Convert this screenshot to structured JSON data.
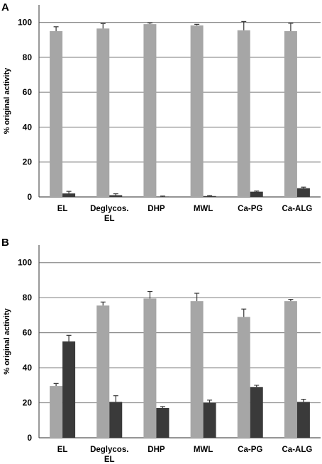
{
  "colors": {
    "series_light": "#a6a6a6",
    "series_dark": "#3a3a3a",
    "grid": "#8c8c8c",
    "axis": "#555555",
    "error_bar": "#333333"
  },
  "chart_data": [
    {
      "panel": "A",
      "type": "bar",
      "categories": [
        [
          "EL"
        ],
        [
          "Deglycos.",
          "EL"
        ],
        [
          "DHP"
        ],
        [
          "MWL"
        ],
        [
          "Ca-PG"
        ],
        [
          "Ca-ALG"
        ]
      ],
      "series": [
        {
          "color": "#a6a6a6",
          "values": [
            95,
            96.5,
            99,
            98.3,
            95.5,
            95
          ],
          "errors": [
            2.5,
            2.8,
            0.7,
            0.6,
            5,
            4.5
          ]
        },
        {
          "color": "#3a3a3a",
          "values": [
            2,
            1,
            0.2,
            0.5,
            3,
            5
          ],
          "errors": [
            1.2,
            0.8,
            0.3,
            0.3,
            0.4,
            0.6
          ]
        }
      ],
      "ylabel": "% original activity",
      "yticks": [
        0,
        20,
        40,
        60,
        80,
        100
      ],
      "ylim": [
        0,
        110
      ],
      "grid": true
    },
    {
      "panel": "B",
      "type": "bar",
      "categories": [
        [
          "EL"
        ],
        [
          "Deglycos.",
          "EL"
        ],
        [
          "DHP"
        ],
        [
          "MWL"
        ],
        [
          "Ca-PG"
        ],
        [
          "Ca-ALG"
        ]
      ],
      "series": [
        {
          "color": "#a6a6a6",
          "values": [
            29.5,
            75.5,
            79.5,
            78,
            69,
            78
          ],
          "errors": [
            1.5,
            2,
            4,
            4.5,
            4.5,
            1
          ]
        },
        {
          "color": "#3a3a3a",
          "values": [
            55,
            20.5,
            17,
            20,
            29,
            20.5
          ],
          "errors": [
            3.5,
            3.5,
            0.8,
            1.5,
            1,
            1.5
          ]
        }
      ],
      "ylabel": "% original activity",
      "yticks": [
        0,
        20,
        40,
        60,
        80,
        100
      ],
      "ylim": [
        0,
        110
      ],
      "grid": true
    }
  ]
}
